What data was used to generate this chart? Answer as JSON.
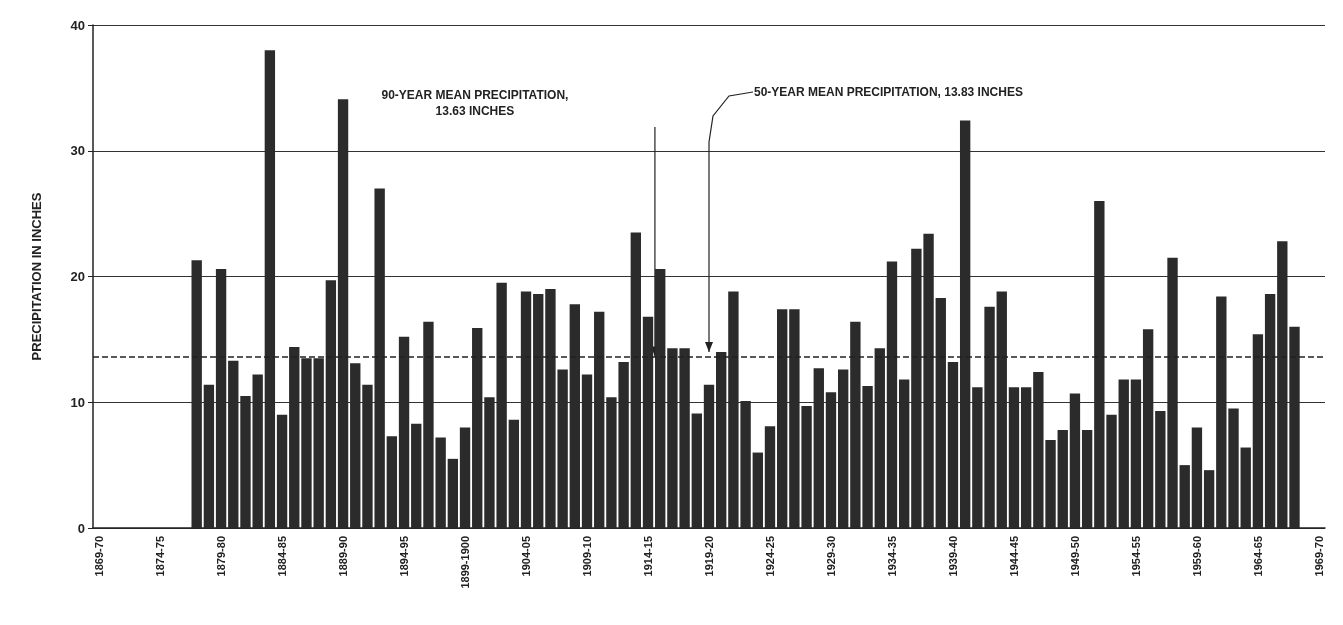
{
  "chart_data": {
    "type": "bar",
    "ylabel": "PRECIPITATION IN INCHES",
    "categories": [
      "1869-70",
      null,
      null,
      null,
      null,
      "1874-75",
      null,
      null,
      null,
      null,
      "1879-80",
      null,
      null,
      null,
      null,
      "1884-85",
      null,
      null,
      null,
      null,
      "1889-90",
      null,
      null,
      null,
      null,
      "1894-95",
      null,
      null,
      null,
      null,
      "1899-1900",
      null,
      null,
      null,
      null,
      "1904-05",
      null,
      null,
      null,
      null,
      "1909-10",
      null,
      null,
      null,
      null,
      "1914-15",
      null,
      null,
      null,
      null,
      "1919-20",
      null,
      null,
      null,
      null,
      "1924-25",
      null,
      null,
      null,
      null,
      "1929-30",
      null,
      null,
      null,
      null,
      "1934-35",
      null,
      null,
      null,
      null,
      "1939-40",
      null,
      null,
      null,
      null,
      "1944-45",
      null,
      null,
      null,
      null,
      "1949-50",
      null,
      null,
      null,
      null,
      "1954-55",
      null,
      null,
      null,
      null,
      "1959-60",
      null,
      null,
      null,
      null,
      "1964-65",
      null,
      null,
      null,
      null,
      "1969-70"
    ],
    "values": [
      null,
      null,
      null,
      null,
      null,
      null,
      null,
      null,
      21.3,
      11.4,
      20.6,
      13.3,
      10.5,
      12.2,
      38.0,
      9.0,
      14.4,
      13.5,
      13.5,
      19.7,
      34.1,
      13.1,
      11.4,
      27.0,
      7.3,
      15.2,
      8.3,
      16.4,
      7.2,
      5.5,
      8.0,
      15.9,
      10.4,
      19.5,
      8.6,
      18.8,
      18.6,
      19.0,
      12.6,
      17.8,
      12.2,
      17.2,
      10.4,
      13.2,
      23.5,
      16.8,
      20.6,
      14.3,
      14.3,
      9.1,
      11.4,
      14.0,
      18.8,
      10.1,
      6.0,
      8.1,
      17.4,
      17.4,
      9.7,
      12.7,
      10.8,
      12.6,
      16.4,
      11.3,
      14.3,
      21.2,
      11.8,
      22.2,
      23.4,
      18.3,
      13.2,
      32.4,
      11.2,
      17.6,
      18.8,
      11.2,
      11.2,
      12.4,
      7.0,
      7.8,
      10.7,
      7.8,
      26.0,
      9.0,
      11.8,
      11.8,
      15.8,
      9.3,
      21.5,
      5.0,
      8.0,
      4.6,
      18.4,
      9.5,
      6.4,
      15.4,
      18.6,
      22.8,
      16.0,
      null,
      null
    ],
    "color": "#2b2b2b",
    "ylim": [
      0,
      40
    ],
    "yticks": [
      0,
      10,
      20,
      30,
      40
    ],
    "grid": "y",
    "ref_lines": [
      {
        "axis": "y",
        "value": 13.63,
        "label": "90-YEAR MEAN PRECIPITATION,\n13.63 INCHES",
        "line_style": "dashed",
        "color": "#222222"
      }
    ],
    "annotations": [
      {
        "text": "50-YEAR MEAN PRECIPITATION, 13.83 INCHES",
        "x": "1919-20",
        "y": 13.83
      }
    ]
  }
}
